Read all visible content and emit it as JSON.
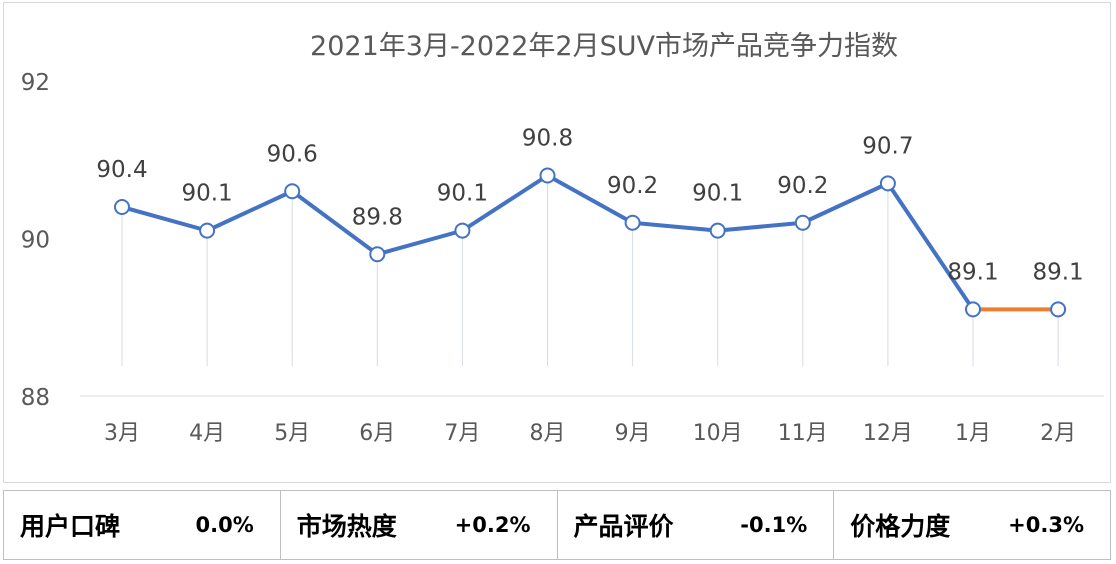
{
  "chart_data": {
    "type": "line",
    "title": "2021年3月-2022年2月SUV市场产品竞争力指数",
    "categories": [
      "3月",
      "4月",
      "5月",
      "6月",
      "7月",
      "8月",
      "9月",
      "10月",
      "11月",
      "12月",
      "1月",
      "2月"
    ],
    "values": [
      90.4,
      90.1,
      90.6,
      89.8,
      90.1,
      90.8,
      90.2,
      90.1,
      90.2,
      90.7,
      89.1,
      89.1
    ],
    "data_labels": [
      "90.4",
      "90.1",
      "90.6",
      "89.8",
      "90.1",
      "90.8",
      "90.2",
      "90.1",
      "90.2",
      "90.7",
      "89.1",
      "89.1"
    ],
    "yticks": [
      "88",
      "90",
      "92"
    ],
    "ylim": [
      88,
      92
    ],
    "line_color": "#4472c4",
    "highlight_color": "#ed7d31",
    "highlight_segment_from_index": 10,
    "xlabel": "",
    "ylabel": "",
    "legend": "none"
  },
  "metrics": [
    {
      "label": "用户口碑",
      "value": "0.0%"
    },
    {
      "label": "市场热度",
      "value": "+0.2%"
    },
    {
      "label": "产品评价",
      "value": "-0.1%"
    },
    {
      "label": "价格力度",
      "value": "+0.3%"
    }
  ]
}
